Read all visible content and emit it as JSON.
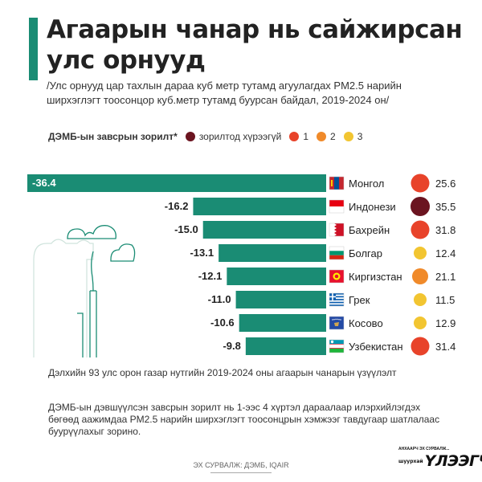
{
  "header": {
    "title": "Агаарын чанар нь сайжирсан улс орнууд",
    "subtitle": "/Улс орнууд цар тахлын дараа куб метр тутамд агуулагдах PM2.5 нарийн ширхэглэгт тоосонцор куб.метр тутамд буурсан байдал, 2019-2024 он/"
  },
  "legend": {
    "title": "ДЭМБ-ын завсрын зорилт*",
    "items": [
      {
        "label": "зорилтод хүрээгүй",
        "color": "#6b1420"
      },
      {
        "label": "1",
        "color": "#e8432a"
      },
      {
        "label": "2",
        "color": "#f08a2a"
      },
      {
        "label": "3",
        "color": "#f2c531"
      }
    ]
  },
  "chart_data": {
    "type": "bar",
    "orientation": "horizontal",
    "categories": [
      "Монгол",
      "Индонези",
      "Бахрейн",
      "Болгар",
      "Киргизстан",
      "Грек",
      "Косово",
      "Узбекистан"
    ],
    "values": [
      -36.4,
      -16.2,
      -15.0,
      -13.1,
      -12.1,
      -11.0,
      -10.6,
      -9.8
    ],
    "value_labels": [
      "-36.4",
      "-16.2",
      "-15.0",
      "-13.1",
      "-12.1",
      "-11.0",
      "-10.6",
      "-9.8"
    ],
    "pm25_2024": [
      25.6,
      35.5,
      31.8,
      12.4,
      21.1,
      11.5,
      12.9,
      31.4
    ],
    "pm25_labels": [
      "25.6",
      "35.5",
      "31.8",
      "12.4",
      "21.1",
      "11.5",
      "12.9",
      "31.4"
    ],
    "target_level": [
      1,
      "not-met",
      1,
      3,
      2,
      3,
      3,
      1
    ],
    "flags": [
      "mongolia-flag",
      "indonesia-flag",
      "bahrain-flag",
      "bulgaria-flag",
      "kyrgyzstan-flag",
      "greece-flag",
      "kosovo-flag",
      "uzbekistan-flag"
    ],
    "bar_color": "#1a8c74",
    "level_colors": {
      "not-met": "#6b1420",
      "1": "#e8432a",
      "2": "#f08a2a",
      "3": "#f2c531"
    },
    "xlim": [
      -36.4,
      0
    ]
  },
  "illustration": {
    "icon": "factory-chimney-cloud-icon"
  },
  "footnotes": {
    "note1": "Дэлхийн 93 улс орон газар нутгийн 2019-2024 оны агаарын чанарын үзүүлэлт",
    "note2": "ДЭМБ-ын дэвшүүлсэн завсрын зорилт нь 1-ээс 4 хүртэл дараалаар илэрхийлэгдэх бөгөөд аажимдаа PM2.5 нарийн ширхэглэгт тоосонцрын хэмжээг тавдугаар шатлалаас буурүүлахыг зорино.",
    "source": "ЭХ СУРВАЛЖ: ДЭМБ, IQAIR"
  },
  "brand": {
    "tagline": "АНХААРЧ ЭХ СУРВАЛЖ...",
    "prefix": "шуурхай",
    "name": "ҮЛЭЭГЧ"
  }
}
